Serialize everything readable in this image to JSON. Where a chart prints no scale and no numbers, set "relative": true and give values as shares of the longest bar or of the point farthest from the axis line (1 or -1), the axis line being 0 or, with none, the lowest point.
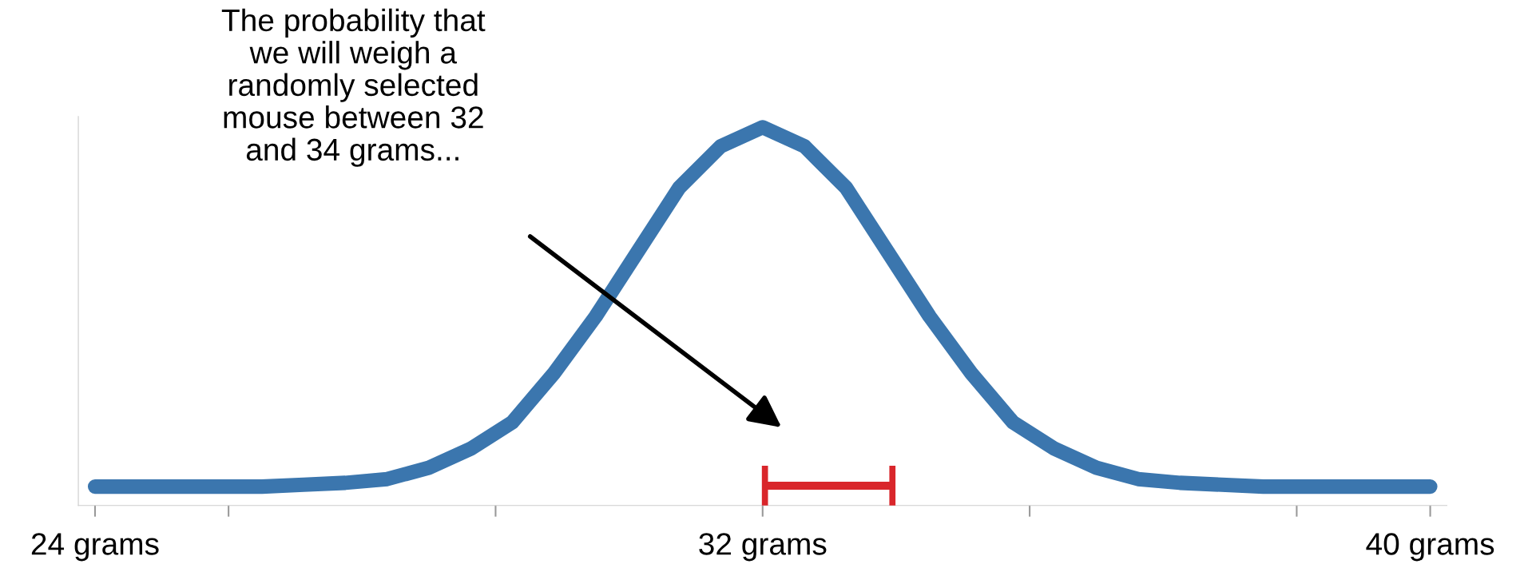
{
  "chart_data": {
    "type": "line",
    "relative": true,
    "x": [
      24,
      24.5,
      25,
      25.5,
      26,
      26.5,
      27,
      27.5,
      28,
      28.5,
      29,
      29.5,
      30,
      30.5,
      31,
      31.5,
      32,
      32.5,
      33,
      33.5,
      34,
      34.5,
      35,
      35.5,
      36,
      36.5,
      37,
      37.5,
      38,
      38.5,
      39,
      39.5,
      40
    ],
    "series": [
      {
        "color": "#3b76ae",
        "values": [
          0.05,
          0.05,
          0.05,
          0.05,
          0.05,
          0.055,
          0.06,
          0.07,
          0.1,
          0.15,
          0.22,
          0.35,
          0.5,
          0.67,
          0.84,
          0.95,
          1,
          0.95,
          0.84,
          0.67,
          0.5,
          0.35,
          0.22,
          0.15,
          0.1,
          0.07,
          0.06,
          0.055,
          0.05,
          0.05,
          0.05,
          0.05,
          0.05
        ]
      }
    ],
    "xlim": [
      23.8,
      40.2
    ],
    "xticks": [
      {
        "value": 24,
        "label": "24 grams"
      },
      {
        "value": 25.6,
        "label": null
      },
      {
        "value": 28.8,
        "label": null
      },
      {
        "value": 32,
        "label": "32 grams"
      },
      {
        "value": 35.2,
        "label": null
      },
      {
        "value": 38.4,
        "label": null
      },
      {
        "value": 40,
        "label": "40 grams"
      }
    ],
    "annotations": [
      "The probability that\nwe will weigh a\nrandomly selected\nmouse between 32\nand 34 grams..."
    ],
    "marker": "none",
    "line_style": "solid",
    "grid": false,
    "legend": false
  }
}
